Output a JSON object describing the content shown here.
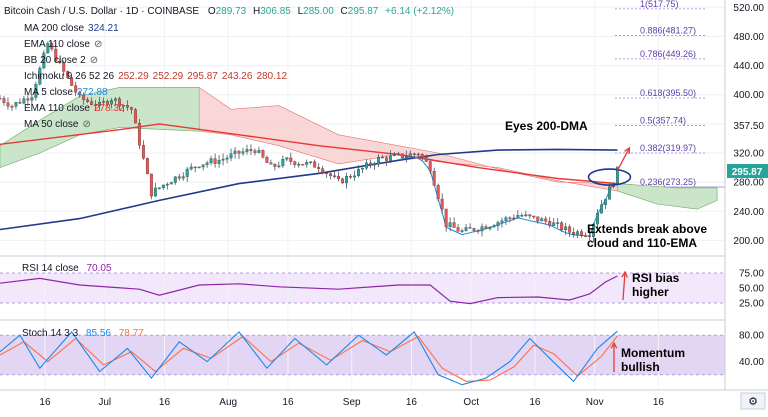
{
  "header": {
    "title": "Bitcoin Cash / U.S. Dollar · 1D · COINBASE",
    "ohlc": [
      {
        "k": "O",
        "v": "289.73"
      },
      {
        "k": "H",
        "v": "306.85"
      },
      {
        "k": "L",
        "v": "285.00"
      },
      {
        "k": "C",
        "v": "295.87"
      }
    ],
    "change": "+6.14 (+2.12%)"
  },
  "indicators": [
    {
      "label": "MA 200 close",
      "values": [
        "324.21"
      ],
      "color": "#1e3a8a"
    },
    {
      "label": "EMA 110 close",
      "values": [],
      "color": "#777777"
    },
    {
      "label": "BB 20 close 2",
      "values": [],
      "color": "#777777"
    },
    {
      "label": "Ichimoku 9 26 52 26",
      "values": [
        "252.29",
        "252.29",
        "295.87",
        "243.26",
        "280.12"
      ],
      "color": "#c0392b"
    },
    {
      "label": "MA 5 close",
      "values": [
        "272.88"
      ],
      "color": "#1e88e5"
    },
    {
      "label": "EMA 110 close",
      "values": [
        "278.32"
      ],
      "color": "#e53935"
    },
    {
      "label": "MA 50 close",
      "values": [],
      "color": "#9e9e9e"
    }
  ],
  "price_axis": {
    "ticks": [
      "520.00",
      "480.00",
      "440.00",
      "400.00",
      "357.50",
      "320.00",
      "280.00",
      "240.00",
      "200.00"
    ],
    "last_price": "295.87"
  },
  "x_axis": {
    "ticks": [
      "16",
      "Jul",
      "16",
      "Aug",
      "16",
      "Sep",
      "16",
      "Oct",
      "16",
      "Nov",
      "16"
    ]
  },
  "fib_levels": [
    {
      "label": "1(517.75)",
      "value": 517.75
    },
    {
      "label": "0.886(481.27)",
      "value": 481.27
    },
    {
      "label": "0.786(449.26)",
      "value": 449.26
    },
    {
      "label": "0.618(395.50)",
      "value": 395.5
    },
    {
      "label": "0.5(357.74)",
      "value": 357.74
    },
    {
      "label": "0.382(319.97)",
      "value": 319.97
    },
    {
      "label": "0.236(273.25)",
      "value": 273.25
    }
  ],
  "annotations": {
    "eyes": "Eyes 200-DMA",
    "extends": [
      "Extends break above",
      "cloud and 110-EMA"
    ],
    "rsi_bias": [
      "RSI bias",
      "higher"
    ],
    "momentum": [
      "Momentum",
      "bullish"
    ]
  },
  "rsi": {
    "label": "RSI 14 close",
    "value": "70.05",
    "ticks": [
      "75.00",
      "50.00",
      "25.00"
    ],
    "color": "#8e24aa"
  },
  "stoch": {
    "label": "Stoch 14 3 3",
    "k": "85.56",
    "d": "78.77",
    "ticks": [
      "80.00",
      "40.00"
    ],
    "k_color": "#1e88e5",
    "d_color": "#ff7043"
  },
  "chart_data": {
    "type": "line",
    "title": "Bitcoin Cash / U.S. Dollar · 1D · COINBASE",
    "ylim": [
      180,
      530
    ],
    "price_path": [
      {
        "d": 0,
        "p": 395
      },
      {
        "d": 3,
        "p": 385
      },
      {
        "d": 8,
        "p": 400
      },
      {
        "d": 12,
        "p": 470
      },
      {
        "d": 15,
        "p": 440
      },
      {
        "d": 20,
        "p": 395
      },
      {
        "d": 25,
        "p": 385
      },
      {
        "d": 28,
        "p": 395
      },
      {
        "d": 33,
        "p": 380
      },
      {
        "d": 38,
        "p": 265
      },
      {
        "d": 42,
        "p": 280
      },
      {
        "d": 50,
        "p": 305
      },
      {
        "d": 55,
        "p": 310
      },
      {
        "d": 60,
        "p": 320
      },
      {
        "d": 64,
        "p": 325
      },
      {
        "d": 68,
        "p": 300
      },
      {
        "d": 72,
        "p": 310
      },
      {
        "d": 80,
        "p": 302
      },
      {
        "d": 85,
        "p": 280
      },
      {
        "d": 90,
        "p": 295
      },
      {
        "d": 95,
        "p": 312
      },
      {
        "d": 100,
        "p": 315
      },
      {
        "d": 105,
        "p": 320
      },
      {
        "d": 108,
        "p": 300
      },
      {
        "d": 112,
        "p": 222
      },
      {
        "d": 116,
        "p": 212
      },
      {
        "d": 122,
        "p": 220
      },
      {
        "d": 130,
        "p": 235
      },
      {
        "d": 138,
        "p": 225
      },
      {
        "d": 143,
        "p": 212
      },
      {
        "d": 148,
        "p": 210
      },
      {
        "d": 150,
        "p": 240
      },
      {
        "d": 153,
        "p": 270
      },
      {
        "d": 155,
        "p": 296
      }
    ],
    "ema110_path": [
      {
        "d": 0,
        "p": 332
      },
      {
        "d": 30,
        "p": 352
      },
      {
        "d": 40,
        "p": 360
      },
      {
        "d": 60,
        "p": 345
      },
      {
        "d": 80,
        "p": 330
      },
      {
        "d": 100,
        "p": 318
      },
      {
        "d": 120,
        "p": 300
      },
      {
        "d": 140,
        "p": 285
      },
      {
        "d": 155,
        "p": 278
      }
    ],
    "ma200_path": [
      {
        "d": 0,
        "p": 215
      },
      {
        "d": 20,
        "p": 230
      },
      {
        "d": 40,
        "p": 255
      },
      {
        "d": 60,
        "p": 278
      },
      {
        "d": 80,
        "p": 292
      },
      {
        "d": 100,
        "p": 310
      },
      {
        "d": 110,
        "p": 318
      },
      {
        "d": 125,
        "p": 324
      },
      {
        "d": 140,
        "p": 325
      },
      {
        "d": 155,
        "p": 324
      }
    ],
    "cloud_upper": [
      {
        "d": 0,
        "p": 330
      },
      {
        "d": 10,
        "p": 365
      },
      {
        "d": 20,
        "p": 398
      },
      {
        "d": 30,
        "p": 410
      },
      {
        "d": 50,
        "p": 410
      },
      {
        "d": 58,
        "p": 380
      },
      {
        "d": 70,
        "p": 385
      },
      {
        "d": 85,
        "p": 345
      },
      {
        "d": 100,
        "p": 330
      },
      {
        "d": 110,
        "p": 320
      },
      {
        "d": 125,
        "p": 298
      },
      {
        "d": 140,
        "p": 280
      },
      {
        "d": 155,
        "p": 278
      },
      {
        "d": 170,
        "p": 272
      },
      {
        "d": 180,
        "p": 272
      }
    ],
    "cloud_lower": [
      {
        "d": 0,
        "p": 300
      },
      {
        "d": 10,
        "p": 320
      },
      {
        "d": 20,
        "p": 345
      },
      {
        "d": 30,
        "p": 355
      },
      {
        "d": 50,
        "p": 350
      },
      {
        "d": 58,
        "p": 345
      },
      {
        "d": 70,
        "p": 330
      },
      {
        "d": 85,
        "p": 305
      },
      {
        "d": 100,
        "p": 318
      },
      {
        "d": 110,
        "p": 308
      },
      {
        "d": 125,
        "p": 300
      },
      {
        "d": 140,
        "p": 282
      },
      {
        "d": 155,
        "p": 268
      },
      {
        "d": 165,
        "p": 250
      },
      {
        "d": 175,
        "p": 243
      },
      {
        "d": 180,
        "p": 255
      }
    ],
    "rsi_path": [
      {
        "d": 0,
        "p": 58
      },
      {
        "d": 10,
        "p": 66
      },
      {
        "d": 20,
        "p": 55
      },
      {
        "d": 35,
        "p": 48
      },
      {
        "d": 40,
        "p": 38
      },
      {
        "d": 50,
        "p": 55
      },
      {
        "d": 60,
        "p": 57
      },
      {
        "d": 70,
        "p": 52
      },
      {
        "d": 85,
        "p": 48
      },
      {
        "d": 100,
        "p": 55
      },
      {
        "d": 108,
        "p": 55
      },
      {
        "d": 113,
        "p": 28
      },
      {
        "d": 118,
        "p": 24
      },
      {
        "d": 125,
        "p": 34
      },
      {
        "d": 135,
        "p": 35
      },
      {
        "d": 143,
        "p": 30
      },
      {
        "d": 148,
        "p": 40
      },
      {
        "d": 152,
        "p": 60
      },
      {
        "d": 155,
        "p": 70
      }
    ],
    "stoch_k": [
      {
        "d": 0,
        "p": 55
      },
      {
        "d": 5,
        "p": 80
      },
      {
        "d": 10,
        "p": 30
      },
      {
        "d": 18,
        "p": 85
      },
      {
        "d": 25,
        "p": 25
      },
      {
        "d": 32,
        "p": 60
      },
      {
        "d": 38,
        "p": 15
      },
      {
        "d": 45,
        "p": 70
      },
      {
        "d": 52,
        "p": 40
      },
      {
        "d": 60,
        "p": 85
      },
      {
        "d": 67,
        "p": 30
      },
      {
        "d": 74,
        "p": 75
      },
      {
        "d": 82,
        "p": 35
      },
      {
        "d": 90,
        "p": 80
      },
      {
        "d": 97,
        "p": 50
      },
      {
        "d": 104,
        "p": 85
      },
      {
        "d": 110,
        "p": 20
      },
      {
        "d": 116,
        "p": 5
      },
      {
        "d": 122,
        "p": 15
      },
      {
        "d": 128,
        "p": 40
      },
      {
        "d": 133,
        "p": 75
      },
      {
        "d": 138,
        "p": 45
      },
      {
        "d": 144,
        "p": 10
      },
      {
        "d": 150,
        "p": 60
      },
      {
        "d": 155,
        "p": 86
      }
    ],
    "stoch_d": [
      {
        "d": 0,
        "p": 50
      },
      {
        "d": 6,
        "p": 70
      },
      {
        "d": 12,
        "p": 40
      },
      {
        "d": 19,
        "p": 75
      },
      {
        "d": 26,
        "p": 35
      },
      {
        "d": 33,
        "p": 55
      },
      {
        "d": 39,
        "p": 25
      },
      {
        "d": 46,
        "p": 60
      },
      {
        "d": 53,
        "p": 45
      },
      {
        "d": 61,
        "p": 78
      },
      {
        "d": 68,
        "p": 40
      },
      {
        "d": 75,
        "p": 68
      },
      {
        "d": 83,
        "p": 42
      },
      {
        "d": 91,
        "p": 72
      },
      {
        "d": 98,
        "p": 55
      },
      {
        "d": 105,
        "p": 78
      },
      {
        "d": 111,
        "p": 30
      },
      {
        "d": 117,
        "p": 10
      },
      {
        "d": 123,
        "p": 12
      },
      {
        "d": 129,
        "p": 32
      },
      {
        "d": 134,
        "p": 65
      },
      {
        "d": 139,
        "p": 52
      },
      {
        "d": 145,
        "p": 18
      },
      {
        "d": 151,
        "p": 48
      },
      {
        "d": 155,
        "p": 79
      }
    ],
    "targets": [
      {
        "label": "Eyes 200-DMA",
        "d": 160,
        "p": 357
      },
      {
        "label": "Extends break above cloud and 110-EMA",
        "d": 155,
        "p": 287
      }
    ]
  }
}
